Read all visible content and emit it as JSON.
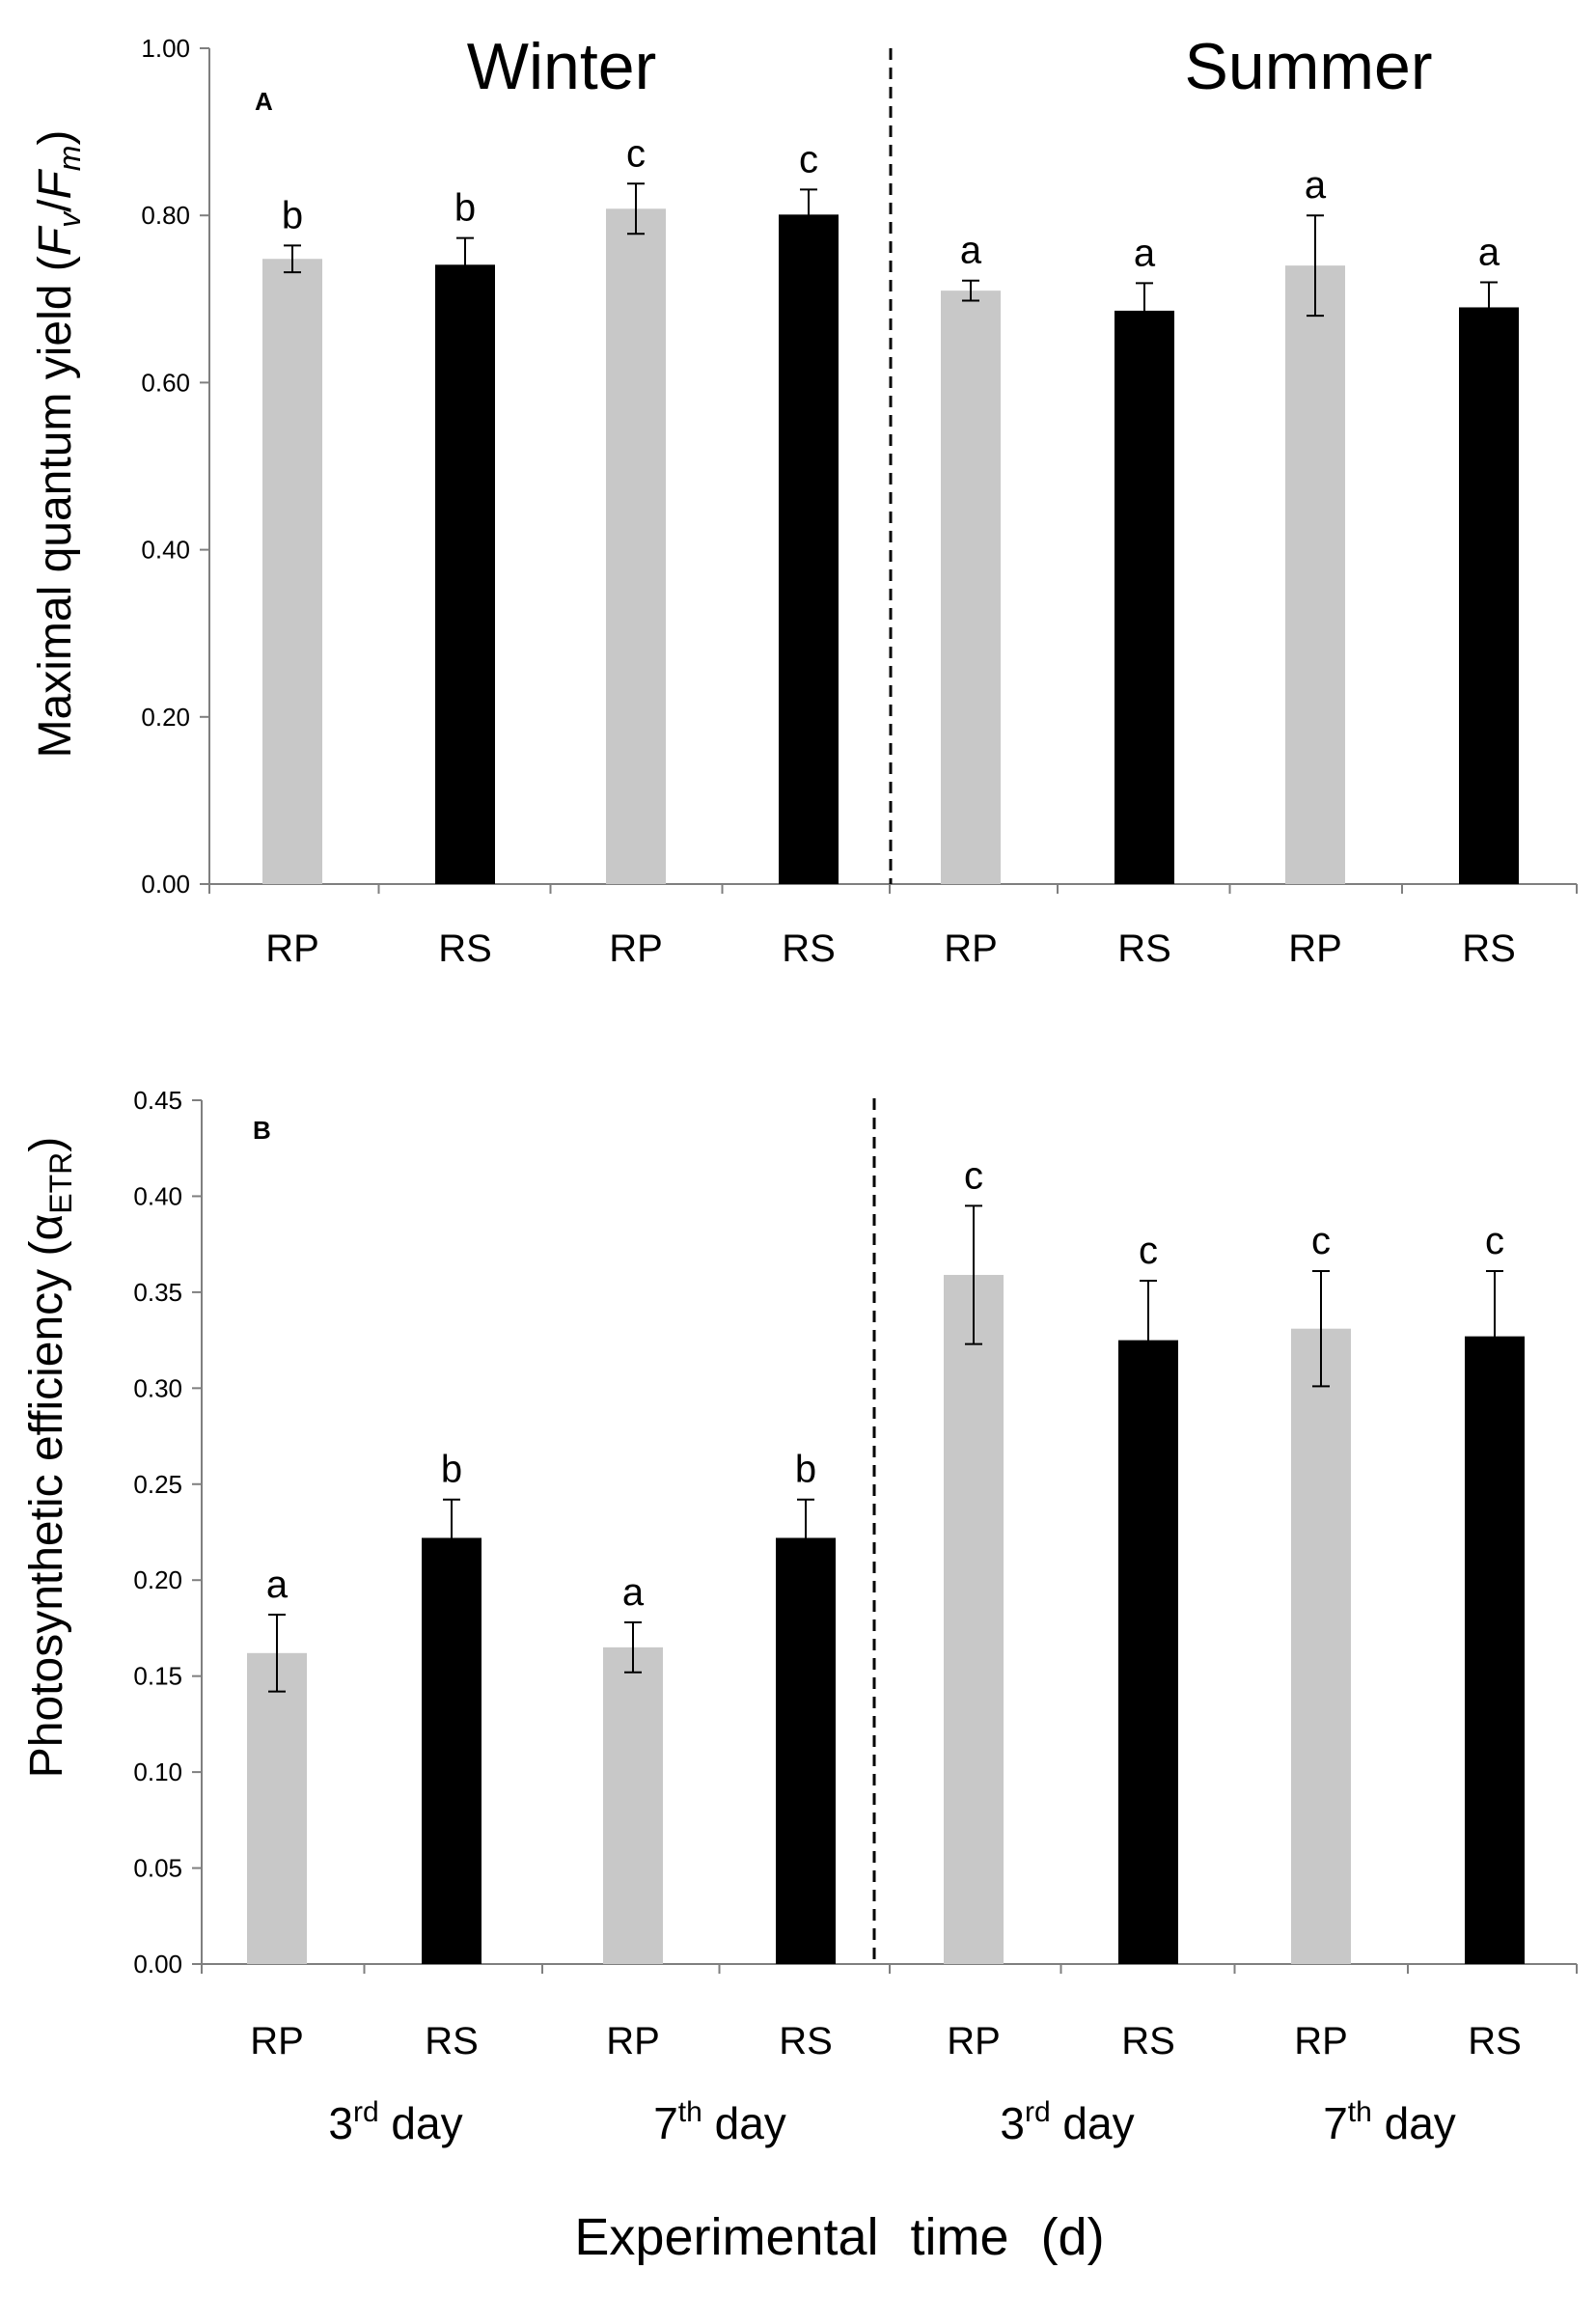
{
  "chart_data": [
    {
      "type": "bar",
      "panel_label": "A",
      "season_labels": [
        "Winter",
        "Summer"
      ],
      "ylabel": {
        "main": "Maximal quantum yield (",
        "f1": "F",
        "s1": "v",
        "slash": "/",
        "f2": "F",
        "s2": "m",
        "close": ")"
      },
      "ylim": [
        0,
        1.0
      ],
      "yticks": [
        "0.00",
        "0.20",
        "0.40",
        "0.60",
        "0.80",
        "1.00"
      ],
      "categories": [
        "RP",
        "RS",
        "RP",
        "RS",
        "RP",
        "RS",
        "RP",
        "RS"
      ],
      "values": [
        0.748,
        0.741,
        0.808,
        0.801,
        0.71,
        0.686,
        0.74,
        0.69
      ],
      "errors": [
        0.016,
        0.032,
        0.03,
        0.03,
        0.012,
        0.033,
        0.06,
        0.03
      ],
      "significance": [
        "b",
        "b",
        "c",
        "c",
        "a",
        "a",
        "a",
        "a"
      ],
      "bar_colors": [
        "#c8c8c8",
        "#000000",
        "#c8c8c8",
        "#000000",
        "#c8c8c8",
        "#000000",
        "#c8c8c8",
        "#000000"
      ],
      "grid": false
    },
    {
      "type": "bar",
      "panel_label": "B",
      "ylabel": {
        "main": "Photosynthetic efficiency (α",
        "sub": "ETR",
        "close": ")"
      },
      "ylim": [
        0,
        0.45
      ],
      "yticks": [
        "0.00",
        "0.05",
        "0.10",
        "0.15",
        "0.20",
        "0.25",
        "0.30",
        "0.35",
        "0.40",
        "0.45"
      ],
      "categories": [
        "RP",
        "RS",
        "RP",
        "RS",
        "RP",
        "RS",
        "RP",
        "RS"
      ],
      "values": [
        0.162,
        0.222,
        0.165,
        0.222,
        0.359,
        0.325,
        0.331,
        0.327
      ],
      "errors": [
        0.02,
        0.02,
        0.013,
        0.02,
        0.036,
        0.031,
        0.03,
        0.034
      ],
      "significance": [
        "a",
        "b",
        "a",
        "b",
        "c",
        "c",
        "c",
        "c"
      ],
      "bar_colors": [
        "#c8c8c8",
        "#000000",
        "#c8c8c8",
        "#000000",
        "#c8c8c8",
        "#000000",
        "#c8c8c8",
        "#000000"
      ],
      "grid": false
    }
  ],
  "day_groups": [
    {
      "num": "3",
      "sup": "rd",
      "word": " day"
    },
    {
      "num": "7",
      "sup": "th",
      "word": " day"
    },
    {
      "num": "3",
      "sup": "rd",
      "word": " day"
    },
    {
      "num": "7",
      "sup": "th",
      "word": " day"
    }
  ],
  "xlabel": "Experimental time (d)"
}
